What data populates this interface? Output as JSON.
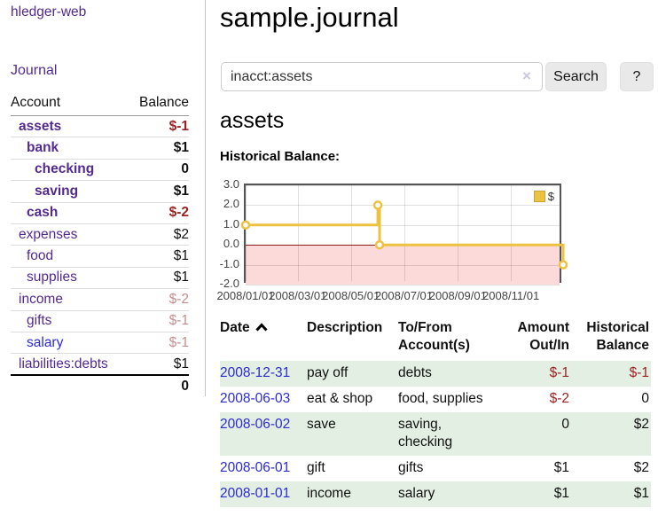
{
  "sidebar": {
    "app_title": "hledger-web",
    "journal_link": "Journal",
    "accounts_table": {
      "account_header": "Account",
      "balance_header": "Balance",
      "rows": [
        {
          "name": "assets",
          "balance": "$-1"
        },
        {
          "name": "bank",
          "balance": "$1"
        },
        {
          "name": "checking",
          "balance": "0"
        },
        {
          "name": "saving",
          "balance": "$1"
        },
        {
          "name": "cash",
          "balance": "$-2"
        },
        {
          "name": "expenses",
          "balance": "$2"
        },
        {
          "name": "food",
          "balance": "$1"
        },
        {
          "name": "supplies",
          "balance": "$1"
        },
        {
          "name": "income",
          "balance": "$-2"
        },
        {
          "name": "gifts",
          "balance": "$-1"
        },
        {
          "name": "salary",
          "balance": "$-1"
        },
        {
          "name": "liabilities:debts",
          "balance": "$1"
        }
      ],
      "total": "0"
    }
  },
  "main": {
    "title": "sample.journal",
    "search": {
      "query": "inacct:assets",
      "clear_icon": "×",
      "search_button": "Search",
      "help_button": "?"
    },
    "account_heading": "assets",
    "chart_label": "Historical Balance:"
  },
  "chart_data": {
    "type": "line",
    "step": true,
    "title": "Historical Balance",
    "ylabel": "",
    "xlabel": "",
    "ylim": [
      -2,
      3
    ],
    "x_range_dates": [
      "2008-01-01",
      "2008-12-31"
    ],
    "y_ticks": [
      3.0,
      2.0,
      1.0,
      0.0,
      -1.0,
      -2.0
    ],
    "x_ticks": [
      "2008/01/01",
      "2008/03/01",
      "2008/05/01",
      "2008/07/01",
      "2008/09/01",
      "2008/11/01"
    ],
    "grid": true,
    "legend_position": "top-right",
    "series": [
      {
        "name": "$",
        "color": "#edc240",
        "points": [
          {
            "date": "2008-01-01",
            "value": 1
          },
          {
            "date": "2008-06-01",
            "value": 2
          },
          {
            "date": "2008-06-03",
            "value": 0
          },
          {
            "date": "2008-12-31",
            "value": -1
          }
        ]
      }
    ],
    "negative_region_fill": "#fcdada",
    "zero_line_color": "#8b1a1a"
  },
  "register": {
    "headers": {
      "date": "Date",
      "description": "Description",
      "account": "To/From\nAccount(s)",
      "amount": "Amount\nOut/In",
      "balance": "Historical\nBalance"
    },
    "rows": [
      {
        "date": "2008-12-31",
        "description": "pay off",
        "accounts": "debts",
        "amount": "$-1",
        "balance": "$-1"
      },
      {
        "date": "2008-06-03",
        "description": "eat & shop",
        "accounts": "food, supplies",
        "amount": "$-2",
        "balance": "0"
      },
      {
        "date": "2008-06-02",
        "description": "save",
        "accounts": "saving,\nchecking",
        "amount": "0",
        "balance": "$2"
      },
      {
        "date": "2008-06-01",
        "description": "gift",
        "accounts": "gifts",
        "amount": "$1",
        "balance": "$2"
      },
      {
        "date": "2008-01-01",
        "description": "income",
        "accounts": "salary",
        "amount": "$1",
        "balance": "$1"
      }
    ]
  }
}
